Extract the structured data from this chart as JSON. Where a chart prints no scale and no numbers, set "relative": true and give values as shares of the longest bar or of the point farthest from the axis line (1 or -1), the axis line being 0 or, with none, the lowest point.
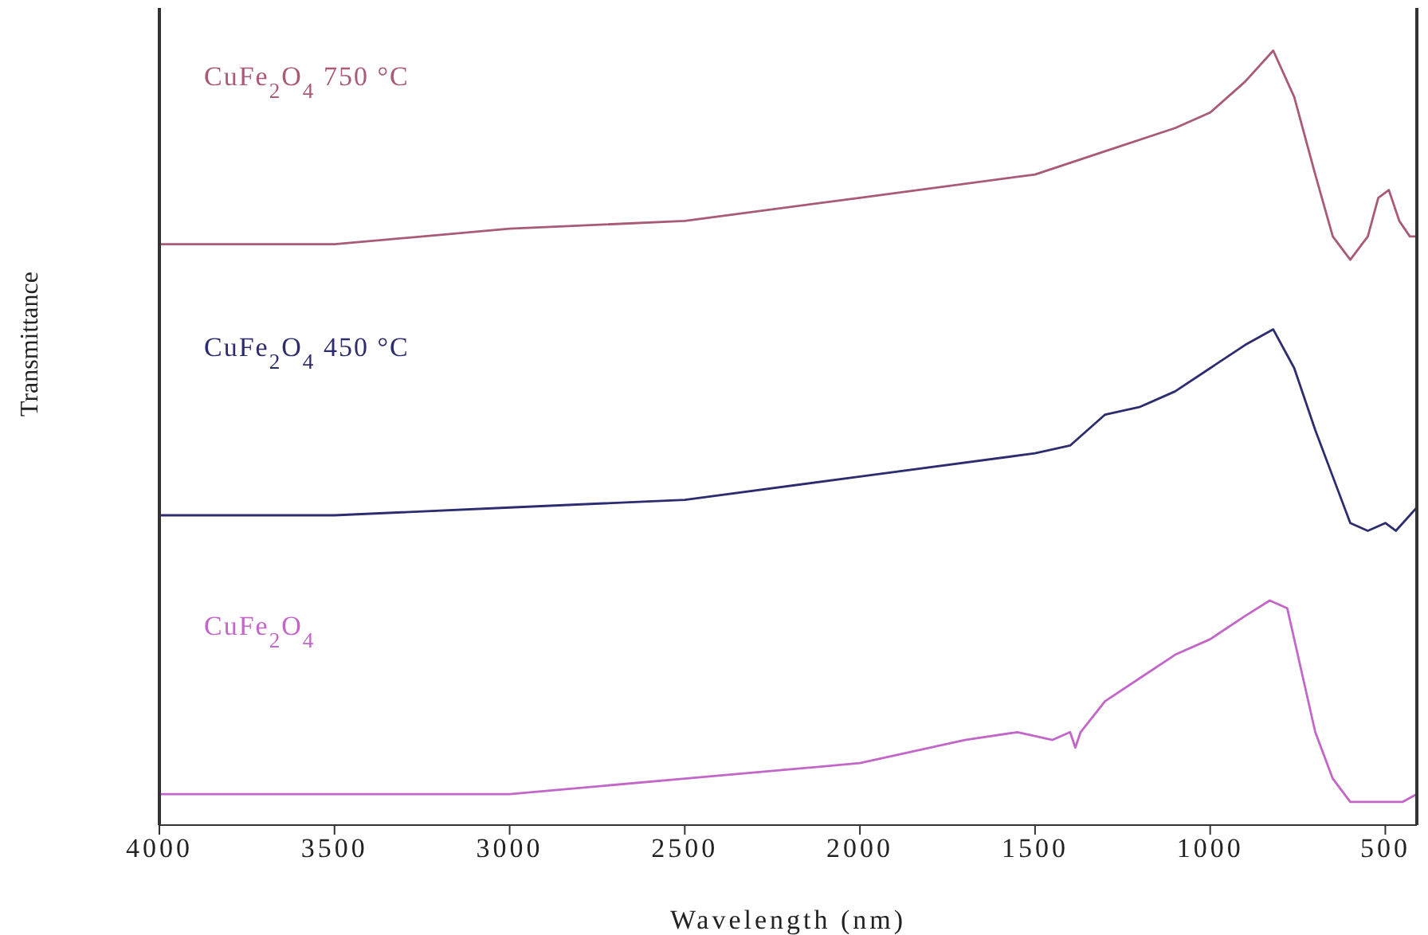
{
  "chart_data": {
    "type": "line",
    "relative": true,
    "xlabel": "Wavelength (nm)",
    "ylabel": "Transmittance",
    "xlim": [
      4000,
      410
    ],
    "xticks": [
      4000,
      3500,
      3000,
      2500,
      2000,
      1500,
      1000,
      500
    ],
    "marker": "none",
    "line_style": "solid",
    "series": [
      {
        "name": "CuFe$_{2}$O$_{4}$ 750 °C",
        "color": "#a85a78",
        "x": [
          4000,
          3500,
          3000,
          2500,
          2000,
          1500,
          1300,
          1100,
          1000,
          900,
          820,
          760,
          700,
          650,
          600,
          550,
          520,
          490,
          460,
          430,
          410
        ],
        "values": [
          0.75,
          0.75,
          0.77,
          0.78,
          0.81,
          0.84,
          0.87,
          0.9,
          0.92,
          0.96,
          1,
          0.94,
          0.84,
          0.76,
          0.73,
          0.76,
          0.81,
          0.82,
          0.78,
          0.76,
          0.76
        ]
      },
      {
        "name": "CuFe$_{2}$O$_{4}$ 450 °C",
        "color": "#2c2c6e",
        "x": [
          4000,
          3500,
          3000,
          2500,
          2000,
          1500,
          1400,
          1300,
          1200,
          1100,
          1000,
          900,
          820,
          760,
          700,
          650,
          600,
          550,
          500,
          470,
          430,
          410
        ],
        "values": [
          0.4,
          0.4,
          0.41,
          0.42,
          0.45,
          0.48,
          0.49,
          0.53,
          0.54,
          0.56,
          0.59,
          0.62,
          0.64,
          0.59,
          0.51,
          0.45,
          0.39,
          0.38,
          0.39,
          0.38,
          0.4,
          0.41
        ]
      },
      {
        "name": "CuFe$_{2}$O$_{4}$",
        "color": "#c266c8",
        "x": [
          4000,
          3500,
          3000,
          2500,
          2000,
          1700,
          1550,
          1450,
          1400,
          1385,
          1370,
          1300,
          1200,
          1100,
          1000,
          900,
          830,
          780,
          740,
          700,
          650,
          600,
          550,
          500,
          450,
          410
        ],
        "values": [
          0.04,
          0.04,
          0.04,
          0.06,
          0.08,
          0.11,
          0.12,
          0.11,
          0.12,
          0.1,
          0.12,
          0.16,
          0.19,
          0.22,
          0.24,
          0.27,
          0.29,
          0.28,
          0.2,
          0.12,
          0.06,
          0.03,
          0.03,
          0.03,
          0.03,
          0.04
        ]
      }
    ]
  }
}
